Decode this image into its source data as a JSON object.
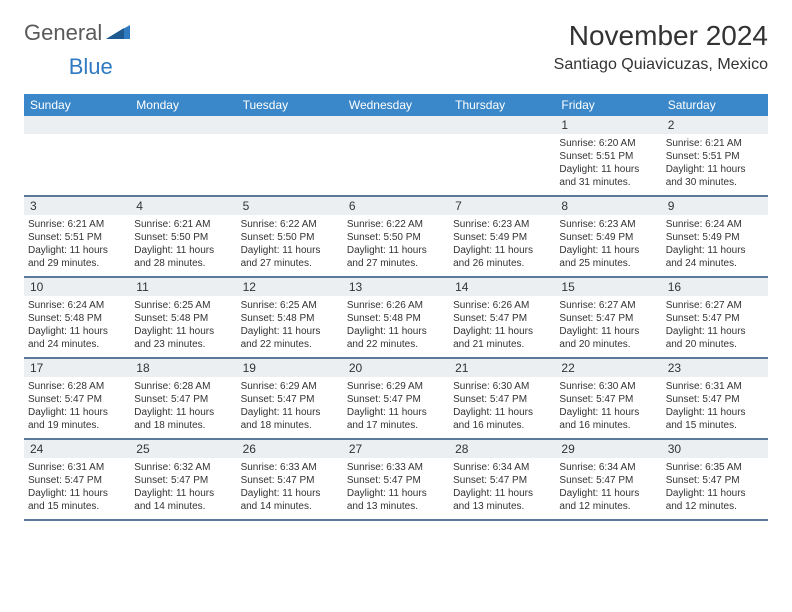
{
  "brand": {
    "part1": "General",
    "part2": "Blue"
  },
  "title": "November 2024",
  "location": "Santiago Quiavicuzas, Mexico",
  "colors": {
    "header_bg": "#3a87c9",
    "header_text": "#ffffff",
    "row_divider": "#5b7a9a",
    "daynum_bg": "#eceff1",
    "brand_gray": "#5a5a5a",
    "brand_blue": "#2f7ac0"
  },
  "day_headers": [
    "Sunday",
    "Monday",
    "Tuesday",
    "Wednesday",
    "Thursday",
    "Friday",
    "Saturday"
  ],
  "weeks": [
    [
      null,
      null,
      null,
      null,
      null,
      {
        "n": "1",
        "sunrise": "6:20 AM",
        "sunset": "5:51 PM",
        "daylight": "11 hours and 31 minutes."
      },
      {
        "n": "2",
        "sunrise": "6:21 AM",
        "sunset": "5:51 PM",
        "daylight": "11 hours and 30 minutes."
      }
    ],
    [
      {
        "n": "3",
        "sunrise": "6:21 AM",
        "sunset": "5:51 PM",
        "daylight": "11 hours and 29 minutes."
      },
      {
        "n": "4",
        "sunrise": "6:21 AM",
        "sunset": "5:50 PM",
        "daylight": "11 hours and 28 minutes."
      },
      {
        "n": "5",
        "sunrise": "6:22 AM",
        "sunset": "5:50 PM",
        "daylight": "11 hours and 27 minutes."
      },
      {
        "n": "6",
        "sunrise": "6:22 AM",
        "sunset": "5:50 PM",
        "daylight": "11 hours and 27 minutes."
      },
      {
        "n": "7",
        "sunrise": "6:23 AM",
        "sunset": "5:49 PM",
        "daylight": "11 hours and 26 minutes."
      },
      {
        "n": "8",
        "sunrise": "6:23 AM",
        "sunset": "5:49 PM",
        "daylight": "11 hours and 25 minutes."
      },
      {
        "n": "9",
        "sunrise": "6:24 AM",
        "sunset": "5:49 PM",
        "daylight": "11 hours and 24 minutes."
      }
    ],
    [
      {
        "n": "10",
        "sunrise": "6:24 AM",
        "sunset": "5:48 PM",
        "daylight": "11 hours and 24 minutes."
      },
      {
        "n": "11",
        "sunrise": "6:25 AM",
        "sunset": "5:48 PM",
        "daylight": "11 hours and 23 minutes."
      },
      {
        "n": "12",
        "sunrise": "6:25 AM",
        "sunset": "5:48 PM",
        "daylight": "11 hours and 22 minutes."
      },
      {
        "n": "13",
        "sunrise": "6:26 AM",
        "sunset": "5:48 PM",
        "daylight": "11 hours and 22 minutes."
      },
      {
        "n": "14",
        "sunrise": "6:26 AM",
        "sunset": "5:47 PM",
        "daylight": "11 hours and 21 minutes."
      },
      {
        "n": "15",
        "sunrise": "6:27 AM",
        "sunset": "5:47 PM",
        "daylight": "11 hours and 20 minutes."
      },
      {
        "n": "16",
        "sunrise": "6:27 AM",
        "sunset": "5:47 PM",
        "daylight": "11 hours and 20 minutes."
      }
    ],
    [
      {
        "n": "17",
        "sunrise": "6:28 AM",
        "sunset": "5:47 PM",
        "daylight": "11 hours and 19 minutes."
      },
      {
        "n": "18",
        "sunrise": "6:28 AM",
        "sunset": "5:47 PM",
        "daylight": "11 hours and 18 minutes."
      },
      {
        "n": "19",
        "sunrise": "6:29 AM",
        "sunset": "5:47 PM",
        "daylight": "11 hours and 18 minutes."
      },
      {
        "n": "20",
        "sunrise": "6:29 AM",
        "sunset": "5:47 PM",
        "daylight": "11 hours and 17 minutes."
      },
      {
        "n": "21",
        "sunrise": "6:30 AM",
        "sunset": "5:47 PM",
        "daylight": "11 hours and 16 minutes."
      },
      {
        "n": "22",
        "sunrise": "6:30 AM",
        "sunset": "5:47 PM",
        "daylight": "11 hours and 16 minutes."
      },
      {
        "n": "23",
        "sunrise": "6:31 AM",
        "sunset": "5:47 PM",
        "daylight": "11 hours and 15 minutes."
      }
    ],
    [
      {
        "n": "24",
        "sunrise": "6:31 AM",
        "sunset": "5:47 PM",
        "daylight": "11 hours and 15 minutes."
      },
      {
        "n": "25",
        "sunrise": "6:32 AM",
        "sunset": "5:47 PM",
        "daylight": "11 hours and 14 minutes."
      },
      {
        "n": "26",
        "sunrise": "6:33 AM",
        "sunset": "5:47 PM",
        "daylight": "11 hours and 14 minutes."
      },
      {
        "n": "27",
        "sunrise": "6:33 AM",
        "sunset": "5:47 PM",
        "daylight": "11 hours and 13 minutes."
      },
      {
        "n": "28",
        "sunrise": "6:34 AM",
        "sunset": "5:47 PM",
        "daylight": "11 hours and 13 minutes."
      },
      {
        "n": "29",
        "sunrise": "6:34 AM",
        "sunset": "5:47 PM",
        "daylight": "11 hours and 12 minutes."
      },
      {
        "n": "30",
        "sunrise": "6:35 AM",
        "sunset": "5:47 PM",
        "daylight": "11 hours and 12 minutes."
      }
    ]
  ]
}
